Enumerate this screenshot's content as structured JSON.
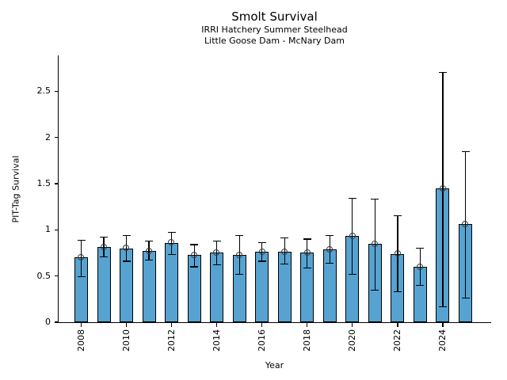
{
  "chart": {
    "title": "Smolt Survival",
    "subtitle1": "IRRI Hatchery Summer Steelhead",
    "subtitle2": "Little Goose Dam - McNary Dam",
    "xlabel": "Year",
    "ylabel": "PIT-Tag Survival"
  },
  "chart_data": {
    "type": "bar",
    "title": "Smolt Survival",
    "subtitle1": "IRRI Hatchery Summer Steelhead",
    "subtitle2": "Little Goose Dam - McNary Dam",
    "xlabel": "Year",
    "ylabel": "PIT-Tag Survival",
    "ylim": [
      0,
      2.87
    ],
    "xlim": [
      2007,
      2026.2
    ],
    "grid": false,
    "legend": "none",
    "bar_color": "#56a3d2",
    "bar_edge_color": "#000000",
    "error_bar_color": "#000000",
    "marker_style": "open-circle",
    "y_ticks": [
      {
        "v": 0,
        "label": "0"
      },
      {
        "v": 0.5,
        "label": "0.5"
      },
      {
        "v": 1,
        "label": "1"
      },
      {
        "v": 1.5,
        "label": "1.5"
      },
      {
        "v": 2,
        "label": "2"
      },
      {
        "v": 2.5,
        "label": "2.5"
      }
    ],
    "x_ticks": [
      {
        "year": 2008,
        "label": "2008"
      },
      {
        "year": 2010,
        "label": "2010"
      },
      {
        "year": 2012,
        "label": "2012"
      },
      {
        "year": 2014,
        "label": "2014"
      },
      {
        "year": 2016,
        "label": "2016"
      },
      {
        "year": 2018,
        "label": "2018"
      },
      {
        "year": 2020,
        "label": "2020"
      },
      {
        "year": 2022,
        "label": "2022"
      },
      {
        "year": 2024,
        "label": "2024"
      }
    ],
    "series": [
      {
        "year": 2008,
        "value": 0.7,
        "err_lo": 0.49,
        "err_hi": 0.89
      },
      {
        "year": 2009,
        "value": 0.81,
        "err_lo": 0.71,
        "err_hi": 0.92
      },
      {
        "year": 2010,
        "value": 0.8,
        "err_lo": 0.66,
        "err_hi": 0.94
      },
      {
        "year": 2011,
        "value": 0.77,
        "err_lo": 0.67,
        "err_hi": 0.88
      },
      {
        "year": 2012,
        "value": 0.86,
        "err_lo": 0.73,
        "err_hi": 0.97
      },
      {
        "year": 2013,
        "value": 0.73,
        "err_lo": 0.6,
        "err_hi": 0.84
      },
      {
        "year": 2014,
        "value": 0.75,
        "err_lo": 0.62,
        "err_hi": 0.88
      },
      {
        "year": 2015,
        "value": 0.73,
        "err_lo": 0.52,
        "err_hi": 0.94
      },
      {
        "year": 2016,
        "value": 0.76,
        "err_lo": 0.66,
        "err_hi": 0.86
      },
      {
        "year": 2017,
        "value": 0.76,
        "err_lo": 0.63,
        "err_hi": 0.91
      },
      {
        "year": 2018,
        "value": 0.75,
        "err_lo": 0.59,
        "err_hi": 0.9
      },
      {
        "year": 2019,
        "value": 0.79,
        "err_lo": 0.64,
        "err_hi": 0.94
      },
      {
        "year": 2020,
        "value": 0.93,
        "err_lo": 0.52,
        "err_hi": 1.34
      },
      {
        "year": 2021,
        "value": 0.85,
        "err_lo": 0.35,
        "err_hi": 1.33
      },
      {
        "year": 2022,
        "value": 0.74,
        "err_lo": 0.33,
        "err_hi": 1.15
      },
      {
        "year": 2023,
        "value": 0.6,
        "err_lo": 0.4,
        "err_hi": 0.8
      },
      {
        "year": 2024,
        "value": 1.45,
        "err_lo": 0.17,
        "err_hi": 2.7
      },
      {
        "year": 2025,
        "value": 1.06,
        "err_lo": 0.26,
        "err_hi": 1.85
      }
    ]
  }
}
